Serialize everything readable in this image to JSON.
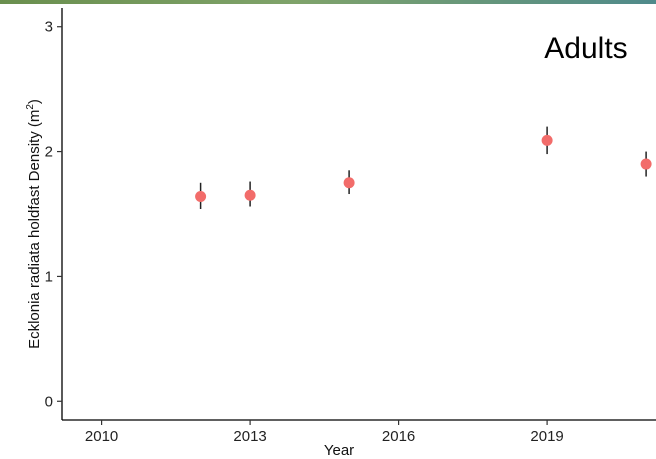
{
  "chart_data": {
    "type": "scatter",
    "title": "",
    "panel_label": "Adults",
    "xlabel": "Year",
    "ylabel": "Ecklonia radiata holdfast Density (m",
    "ylabel_sup": "2",
    "ylabel_close": ")",
    "xlim": [
      2009.2,
      2021.2
    ],
    "ylim": [
      -0.15,
      3.15
    ],
    "xticks": [
      2010,
      2013,
      2016,
      2019
    ],
    "yticks": [
      0,
      1,
      2,
      3
    ],
    "grid": false,
    "legend": "none",
    "point_color": "#f26c6a",
    "errorbar_color": "#222222",
    "points": [
      {
        "x": 2012,
        "y": 1.64,
        "ymin": 1.54,
        "ymax": 1.75
      },
      {
        "x": 2013,
        "y": 1.65,
        "ymin": 1.56,
        "ymax": 1.76
      },
      {
        "x": 2015,
        "y": 1.75,
        "ymin": 1.66,
        "ymax": 1.85
      },
      {
        "x": 2019,
        "y": 2.09,
        "ymin": 1.98,
        "ymax": 2.2
      },
      {
        "x": 2021,
        "y": 1.9,
        "ymin": 1.8,
        "ymax": 2.0
      }
    ]
  }
}
